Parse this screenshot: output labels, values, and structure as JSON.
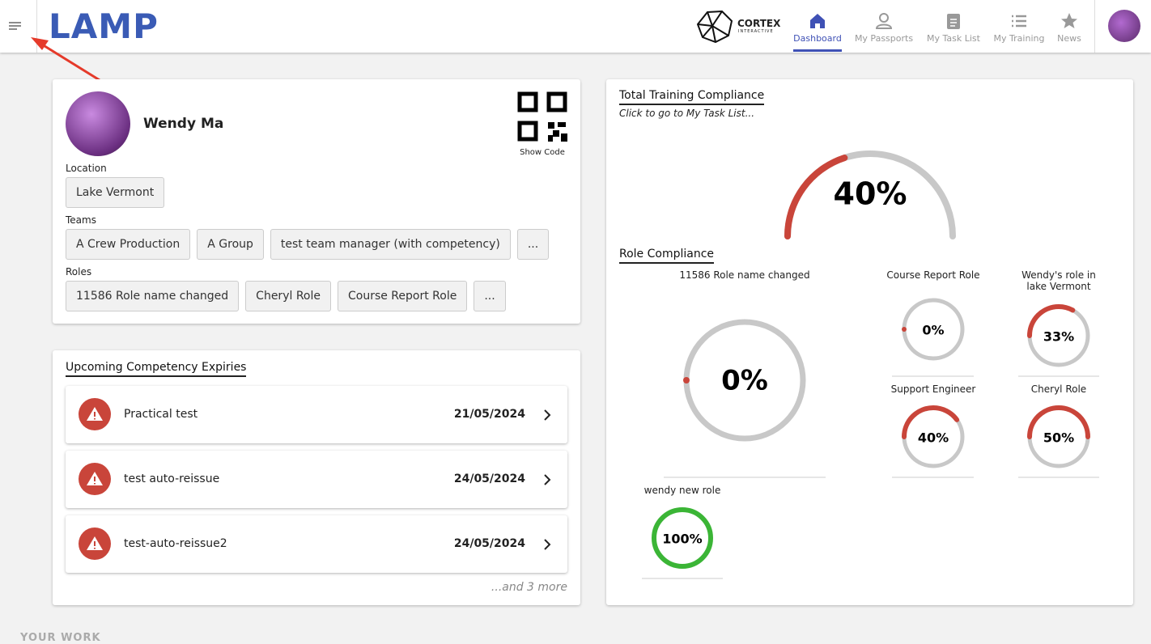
{
  "header": {
    "logo": "LAMP",
    "brand": "CORTEX",
    "brand_sub": "INTERACTIVE",
    "nav": [
      "Dashboard",
      "My Passports",
      "My Task List",
      "My Training",
      "News"
    ]
  },
  "profile": {
    "name": "Wendy Ma",
    "show_code": "Show Code",
    "location_label": "Location",
    "location": "Lake Vermont",
    "teams_label": "Teams",
    "teams": [
      "A Crew Production",
      "A Group",
      "test team manager (with competency)",
      "..."
    ],
    "roles_label": "Roles",
    "roles": [
      "11586 Role name changed",
      "Cheryl Role",
      "Course Report Role",
      "..."
    ]
  },
  "expiries": {
    "title": "Upcoming Competency Expiries",
    "items": [
      {
        "name": "Practical test",
        "date": "21/05/2024"
      },
      {
        "name": "test auto-reissue",
        "date": "24/05/2024"
      },
      {
        "name": "test-auto-reissue2",
        "date": "24/05/2024"
      }
    ],
    "more": "...and 3 more"
  },
  "compliance": {
    "title": "Total Training Compliance",
    "subtitle": "Click to go to My Task List...",
    "value": 40,
    "value_label": "40%",
    "roles_title": "Role Compliance",
    "roles": [
      {
        "label": "11586 Role name changed",
        "value": 0,
        "value_label": "0%"
      },
      {
        "label": "Course Report Role",
        "value": 0,
        "value_label": "0%"
      },
      {
        "label": "Wendy's role in lake Vermont",
        "value": 33,
        "value_label": "33%"
      },
      {
        "label": "Support Engineer",
        "value": 40,
        "value_label": "40%"
      },
      {
        "label": "Cheryl Role",
        "value": 50,
        "value_label": "50%"
      },
      {
        "label": "wendy new role",
        "value": 100,
        "value_label": "100%"
      }
    ]
  },
  "section": "YOUR WORK"
}
